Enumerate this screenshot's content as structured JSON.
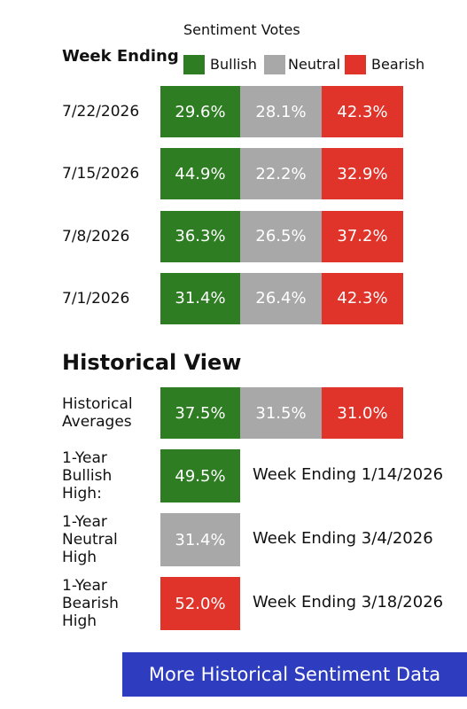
{
  "header": {
    "title": "Sentiment Votes",
    "week_label": "Week Ending",
    "legend": [
      "Bullish",
      "Neutral",
      "Bearish"
    ]
  },
  "weeks": [
    {
      "date": "7/22/2026",
      "cells": [
        "29.6%",
        "28.1%",
        "42.3%"
      ]
    },
    {
      "date": "7/15/2026",
      "cells": [
        "44.9%",
        "22.2%",
        "32.9%"
      ]
    },
    {
      "date": "7/8/2026",
      "cells": [
        "36.3%",
        "26.5%",
        "37.2%"
      ]
    },
    {
      "date": "7/1/2026",
      "cells": [
        "31.4%",
        "26.4%",
        "42.3%"
      ]
    }
  ],
  "historical": {
    "title": "Historical View",
    "averages": {
      "label": "Historical Averages",
      "cells": [
        "37.5%",
        "31.5%",
        "31.0%"
      ]
    },
    "highs": [
      {
        "label": "1-Year Bullish High:",
        "value": "49.5%",
        "week": "Week Ending 1/14/2026"
      },
      {
        "label": "1-Year Neutral High",
        "value": "31.4%",
        "week": "Week Ending 3/4/2026"
      },
      {
        "label": "1-Year Bearish High",
        "value": "52.0%",
        "week": "Week Ending 3/18/2026"
      }
    ]
  },
  "button": "More Historical Sentiment Data"
}
